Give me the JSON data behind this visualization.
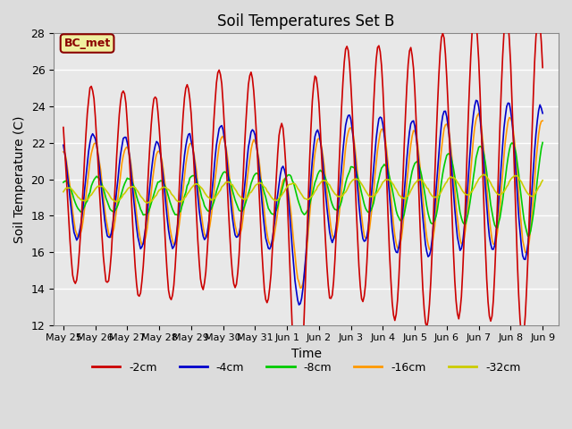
{
  "title": "Soil Temperatures Set B",
  "xlabel": "Time",
  "ylabel": "Soil Temperature (C)",
  "ylim": [
    12,
    28
  ],
  "yticks": [
    12,
    14,
    16,
    18,
    20,
    22,
    24,
    26,
    28
  ],
  "annotation": "BC_met",
  "legend_labels": [
    "-2cm",
    "-4cm",
    "-8cm",
    "-16cm",
    "-32cm"
  ],
  "line_colors": [
    "#cc0000",
    "#0000cc",
    "#00cc00",
    "#ff9900",
    "#cccc00"
  ],
  "background_color": "#dcdcdc",
  "axes_background": "#e8e8e8",
  "xlabels": [
    "May 25",
    "May 26",
    "May 27",
    "May 28",
    "May 29",
    "May 30",
    "May 31",
    "Jun 1",
    "Jun 2",
    "Jun 3",
    "Jun 4",
    "Jun 5",
    "Jun 6",
    "Jun 7",
    "Jun 8",
    "Jun 9"
  ],
  "xtick_positions": [
    0,
    1,
    2,
    3,
    4,
    5,
    6,
    7,
    8,
    9,
    10,
    11,
    12,
    13,
    14,
    15
  ]
}
